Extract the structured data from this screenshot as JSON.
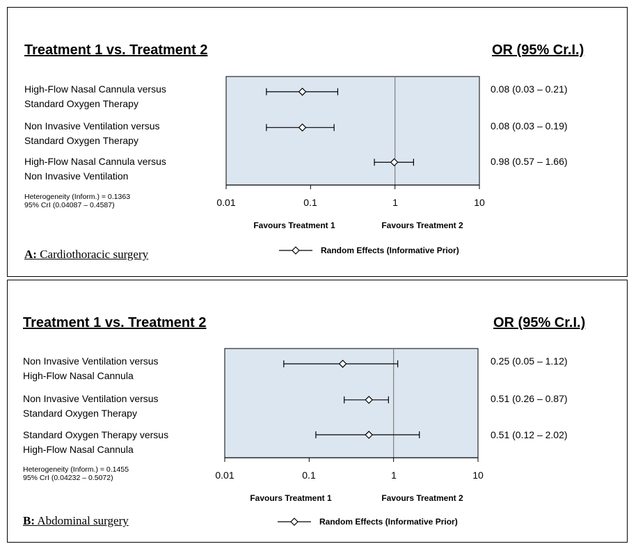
{
  "chart_data": [
    {
      "type": "forest",
      "heading_left": "Treatment 1 vs. Treatment 2",
      "heading_right": "OR (95% Cr.I.)",
      "x_scale": "log",
      "xlim": [
        0.01,
        10
      ],
      "ticks": [
        "0.01",
        "0.1",
        "1",
        "10"
      ],
      "reference_line": 1,
      "favours_left": "Favours Treatment 1",
      "favours_right": "Favours Treatment 2",
      "legend": "Random Effects (Informative Prior)",
      "heterogeneity": [
        "Heterogeneity (Inform.) = 0.1363",
        "95% CrI (0.04087 – 0.4587)"
      ],
      "caption_letter": "A:",
      "caption_text": "Cardiothoracic surgery",
      "rows": [
        {
          "line1": "High-Flow Nasal Cannula versus",
          "line2": "Standard Oxygen Therapy",
          "or": 0.08,
          "lo": 0.03,
          "hi": 0.21,
          "or_text": "0.08 (0.03 – 0.21)"
        },
        {
          "line1": "Non Invasive Ventilation versus",
          "line2": "Standard Oxygen Therapy",
          "or": 0.08,
          "lo": 0.03,
          "hi": 0.19,
          "or_text": "0.08 (0.03 – 0.19)"
        },
        {
          "line1": "High-Flow Nasal Cannula versus",
          "line2": "Non Invasive Ventilation",
          "or": 0.98,
          "lo": 0.57,
          "hi": 1.66,
          "or_text": "0.98 (0.57 – 1.66)"
        }
      ]
    },
    {
      "type": "forest",
      "heading_left": "Treatment 1 vs. Treatment 2",
      "heading_right": "OR (95% Cr.I.)",
      "x_scale": "log",
      "xlim": [
        0.01,
        10
      ],
      "ticks": [
        "0.01",
        "0.1",
        "1",
        "10"
      ],
      "reference_line": 1,
      "favours_left": "Favours Treatment 1",
      "favours_right": "Favours Treatment 2",
      "legend": "Random Effects (Informative Prior)",
      "heterogeneity": [
        "Heterogeneity (Inform.) = 0.1455",
        "95% CrI (0.04232 – 0.5072)"
      ],
      "caption_letter": "B:",
      "caption_text": "Abdominal surgery",
      "rows": [
        {
          "line1": "Non Invasive Ventilation versus",
          "line2": "High-Flow Nasal Cannula",
          "or": 0.25,
          "lo": 0.05,
          "hi": 1.12,
          "or_text": "0.25 (0.05 – 1.12)"
        },
        {
          "line1": "Non Invasive Ventilation versus",
          "line2": "Standard Oxygen Therapy",
          "or": 0.51,
          "lo": 0.26,
          "hi": 0.87,
          "or_text": "0.51 (0.26 – 0.87)"
        },
        {
          "line1": "Standard Oxygen Therapy versus",
          "line2": "High-Flow Nasal Cannula",
          "or": 0.51,
          "lo": 0.12,
          "hi": 2.02,
          "or_text": "0.51 (0.12 – 2.02)"
        }
      ]
    }
  ],
  "colors": {
    "plot_background": "#dce6f1",
    "axis": "#000000",
    "reference_line": "#7f7f7f"
  }
}
